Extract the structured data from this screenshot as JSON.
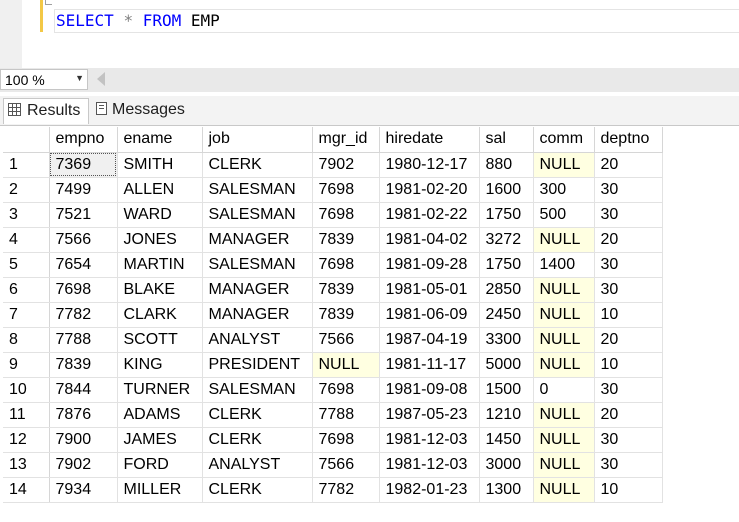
{
  "editor": {
    "sql": {
      "kw_select": "SELECT",
      "star": "*",
      "kw_from": "FROM",
      "table": "EMP"
    }
  },
  "zoom": {
    "value": "100 %"
  },
  "tabs": {
    "results_label": "Results",
    "messages_label": "Messages",
    "results_icon": "grid-icon",
    "messages_icon": "messages-icon"
  },
  "colors": {
    "keyword": "#0000ff",
    "null_background": "#ffffe1",
    "line_marker": "#f3c846"
  },
  "grid": {
    "columns": [
      "empno",
      "ename",
      "job",
      "mgr_id",
      "hiredate",
      "sal",
      "comm",
      "deptno"
    ],
    "rows": [
      [
        "1",
        "7369",
        "SMITH",
        "CLERK",
        "7902",
        "1980-12-17",
        "880",
        "NULL",
        "20"
      ],
      [
        "2",
        "7499",
        "ALLEN",
        "SALESMAN",
        "7698",
        "1981-02-20",
        "1600",
        "300",
        "30"
      ],
      [
        "3",
        "7521",
        "WARD",
        "SALESMAN",
        "7698",
        "1981-02-22",
        "1750",
        "500",
        "30"
      ],
      [
        "4",
        "7566",
        "JONES",
        "MANAGER",
        "7839",
        "1981-04-02",
        "3272",
        "NULL",
        "20"
      ],
      [
        "5",
        "7654",
        "MARTIN",
        "SALESMAN",
        "7698",
        "1981-09-28",
        "1750",
        "1400",
        "30"
      ],
      [
        "6",
        "7698",
        "BLAKE",
        "MANAGER",
        "7839",
        "1981-05-01",
        "2850",
        "NULL",
        "30"
      ],
      [
        "7",
        "7782",
        "CLARK",
        "MANAGER",
        "7839",
        "1981-06-09",
        "2450",
        "NULL",
        "10"
      ],
      [
        "8",
        "7788",
        "SCOTT",
        "ANALYST",
        "7566",
        "1987-04-19",
        "3300",
        "NULL",
        "20"
      ],
      [
        "9",
        "7839",
        "KING",
        "PRESIDENT",
        "NULL",
        "1981-11-17",
        "5000",
        "NULL",
        "10"
      ],
      [
        "10",
        "7844",
        "TURNER",
        "SALESMAN",
        "7698",
        "1981-09-08",
        "1500",
        "0",
        "30"
      ],
      [
        "11",
        "7876",
        "ADAMS",
        "CLERK",
        "7788",
        "1987-05-23",
        "1210",
        "NULL",
        "20"
      ],
      [
        "12",
        "7900",
        "JAMES",
        "CLERK",
        "7698",
        "1981-12-03",
        "1450",
        "NULL",
        "30"
      ],
      [
        "13",
        "7902",
        "FORD",
        "ANALYST",
        "7566",
        "1981-12-03",
        "3000",
        "NULL",
        "30"
      ],
      [
        "14",
        "7934",
        "MILLER",
        "CLERK",
        "7782",
        "1982-01-23",
        "1300",
        "NULL",
        "10"
      ]
    ]
  }
}
